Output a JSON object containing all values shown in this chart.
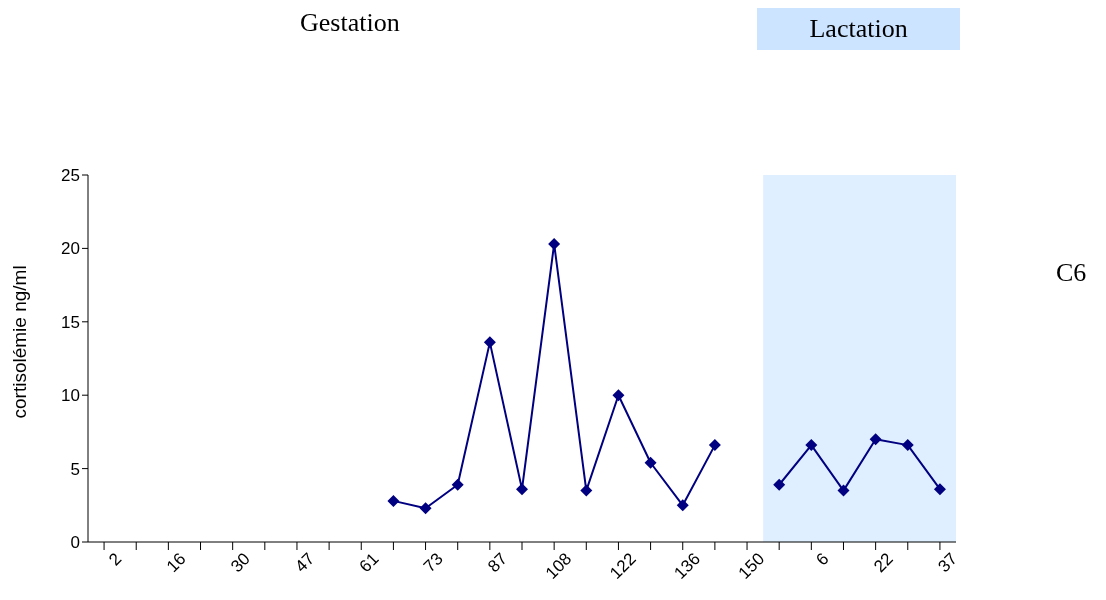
{
  "chart_data": {
    "type": "line",
    "ylabel": "cortisolémie ng/ml",
    "categories": [
      "2",
      null,
      "16",
      null,
      "30",
      null,
      "47",
      null,
      "61",
      null,
      "73",
      null,
      "87",
      null,
      "108",
      null,
      "122",
      null,
      "136",
      null,
      "150",
      null,
      "6",
      null,
      "22",
      null,
      "37"
    ],
    "series": [
      {
        "color": "#000080",
        "values": [
          null,
          null,
          null,
          null,
          null,
          null,
          null,
          null,
          null,
          2.8,
          2.3,
          3.9,
          13.6,
          3.6,
          20.3,
          3.5,
          10.0,
          5.4,
          2.5,
          6.6,
          null,
          3.9,
          6.6,
          3.5,
          7.0,
          6.6,
          3.6
        ]
      }
    ],
    "ylim": [
      0,
      25
    ],
    "yticks": [
      0,
      5,
      10,
      15,
      20,
      25
    ],
    "grid": false,
    "legend": false,
    "marker": "diamond",
    "line_style": "solid",
    "annotations": [
      "Gestation",
      "Lactation",
      "C6"
    ]
  }
}
